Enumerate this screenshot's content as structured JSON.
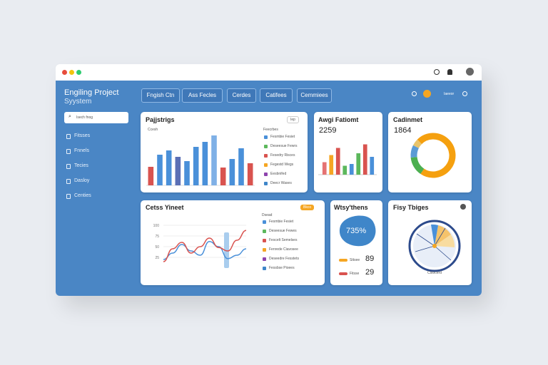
{
  "window": {
    "title": "Engiling Project",
    "subtitle": "Syystem",
    "search": "Isech fnog",
    "nav": [
      "Fitsses",
      "Fnnels",
      "Tecies",
      "Dasloy",
      "Centies"
    ],
    "tabs": [
      "Fngish Ctn",
      "Ass Fecles",
      "Cerdes",
      "Catifees",
      "Cemmiees"
    ],
    "top_badge": "Iaeeor"
  },
  "cards": [
    {
      "title": "Pajjstrigs",
      "subtitle": "Ccesh",
      "button": "Iep",
      "legend_title": "Feecrbes",
      "legend": [
        "Fesmbie Fesiet",
        "Deseesue Fewrs",
        "Fesedry Risces",
        "Fegestd Wegs",
        "Eesbnifed",
        "Deecr Wases"
      ],
      "chart": {
        "type": "bar",
        "ylim": [
          0,
          80
        ],
        "values": [
          26,
          43,
          49,
          40,
          34,
          54,
          61,
          70,
          25,
          37,
          52,
          31
        ],
        "colors": [
          "#d9534f",
          "#4a90d9",
          "#4a90d9",
          "#5b6fb5",
          "#4a90d9",
          "#4a90d9",
          "#4a90d9",
          "#7fb0e6",
          "#d9534f",
          "#4a90d9",
          "#4a90d9",
          "#d9534f"
        ]
      }
    },
    {
      "title": "Awgi Fatiomt",
      "value": "2259",
      "chart": {
        "type": "bar",
        "ylim": [
          0,
          40
        ],
        "values": [
          14,
          22,
          30,
          10,
          12,
          24,
          34,
          20
        ],
        "colors": [
          "#e57373",
          "#f5a623",
          "#d9534f",
          "#5cb85c",
          "#4a90d9",
          "#5cb85c",
          "#d9534f",
          "#4a90d9"
        ]
      }
    },
    {
      "title": "Cadinmet",
      "value": "1864",
      "chart": {
        "type": "pie",
        "values": [
          72,
          14,
          9,
          5
        ],
        "colors": [
          "#f5a00f",
          "#4caf50",
          "#5b9bd5",
          "#e9c46a"
        ]
      }
    },
    {
      "title": "Cetss Yineet",
      "badge": "Bkco",
      "legend_title": "Dsead",
      "legend": [
        "Fesmbie Fesiet",
        "Deseesue Fewes",
        "Fescelt Semelses",
        "Fenrede Ciavosee",
        "Deseedre Fesstets",
        "Fessbse Pioees"
      ],
      "chart": {
        "type": "line",
        "ylim": [
          0,
          100
        ],
        "yticks": [
          25,
          50,
          75,
          100
        ],
        "series": [
          {
            "color": "#4a90d9",
            "values": [
              20,
              35,
              55,
              40,
              30,
              62,
              50,
              22,
              30,
              45
            ]
          },
          {
            "color": "#d9534f",
            "values": [
              15,
              45,
              60,
              35,
              50,
              70,
              48,
              40,
              65,
              88
            ]
          }
        ]
      }
    },
    {
      "title": "Wtsy'thens",
      "value": "735%",
      "rows": [
        {
          "label": "Sttsee",
          "value": 89
        },
        {
          "label": "Fitsse",
          "value": 29
        }
      ]
    },
    {
      "title": "Fisy Tbiges",
      "caption": "Cstocerd"
    }
  ]
}
